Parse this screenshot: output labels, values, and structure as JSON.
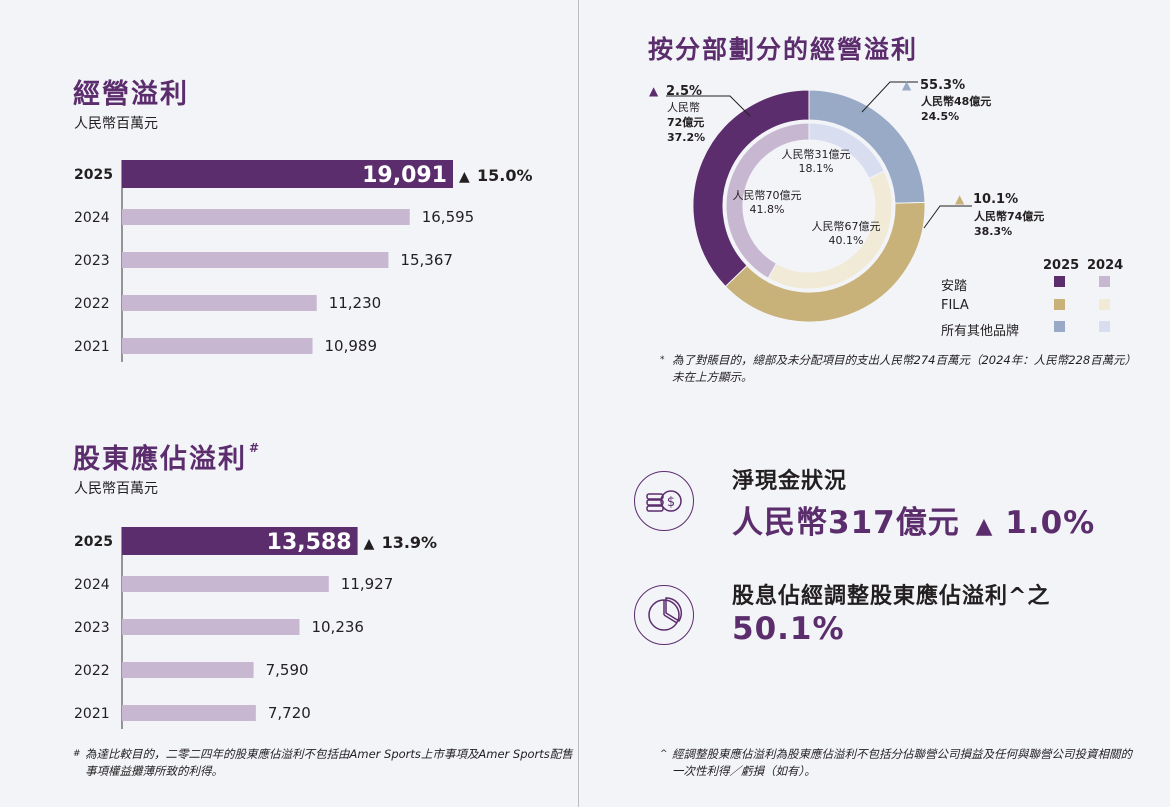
{
  "colors": {
    "accent": "#5c2d6d",
    "bar_current": "#5c2d6d",
    "bar_prior": "#c8b7d1",
    "anta_2025": "#5c2d6d",
    "anta_2024": "#c8b7d1",
    "fila_2025": "#c8b27a",
    "fila_2024": "#f1ead7",
    "other_2025": "#99aac6",
    "other_2024": "#d8def0"
  },
  "operating_profit": {
    "title": "經營溢利",
    "unit": "人民幣百萬元"
  },
  "shareholder_profit": {
    "title": "股東應佔溢利",
    "title_mark": "#",
    "unit": "人民幣百萬元",
    "footnote_mark": "#",
    "footnote": "為達比較目的，二零二四年的股東應佔溢利不包括由Amer Sports上市事項及Amer Sports配售事項權益攤薄所致的利得。"
  },
  "segment": {
    "title": "按分部劃分的經營溢利",
    "footnote_mark": "*",
    "footnote": "為了對賬目的，總部及未分配項目的支出人民幣274百萬元（2024年：人民幣228百萬元）未在上方顯示。",
    "callouts": [
      {
        "change": "2.5%",
        "line1": "人民幣",
        "line2": "72億元",
        "line3": "37.2%"
      },
      {
        "change": "55.3%",
        "line1": "人民幣48億元",
        "line2": "24.5%"
      },
      {
        "change": "10.1%",
        "line1": "人民幣74億元",
        "line2": "38.3%"
      }
    ],
    "inner_labels": [
      {
        "amount": "人民幣31億元",
        "pct": "18.1%"
      },
      {
        "amount": "人民幣70億元",
        "pct": "41.8%"
      },
      {
        "amount": "人民幣67億元",
        "pct": "40.1%"
      }
    ],
    "legend": {
      "year_current": "2025",
      "year_prior": "2024",
      "items": [
        "安踏",
        "FILA",
        "所有其他品牌"
      ]
    }
  },
  "net_cash": {
    "label": "淨現金狀況",
    "value": "人民幣317億元",
    "change": "1.0%"
  },
  "payout": {
    "label": "股息佔經調整股東應佔溢利^之",
    "value": "50.1%",
    "footnote_mark": "^",
    "footnote": "經調整股東應佔溢利為股東應佔溢利不包括分佔聯營公司損益及任何與聯營公司投資相關的一次性利得／虧損（如有）。"
  },
  "chart_data": [
    {
      "type": "bar",
      "orientation": "horizontal",
      "title": "經營溢利",
      "unit": "人民幣百萬元",
      "categories": [
        "2025",
        "2024",
        "2023",
        "2022",
        "2021"
      ],
      "values": [
        19091,
        16595,
        15367,
        11230,
        10989
      ],
      "labels": [
        "19,091",
        "16,595",
        "15,367",
        "11,230",
        "10,989"
      ],
      "change": "15.0%",
      "xlim": [
        0,
        20000
      ]
    },
    {
      "type": "bar",
      "orientation": "horizontal",
      "title": "股東應佔溢利",
      "unit": "人民幣百萬元",
      "categories": [
        "2025",
        "2024",
        "2023",
        "2022",
        "2021"
      ],
      "values": [
        13588,
        11927,
        10236,
        7590,
        7720
      ],
      "labels": [
        "13,588",
        "11,927",
        "10,236",
        "7,590",
        "7,720"
      ],
      "change": "13.9%",
      "xlim": [
        0,
        20000
      ]
    },
    {
      "type": "pie",
      "variant": "nested-donut",
      "title": "按分部劃分的經營溢利",
      "categories": [
        "安踏",
        "FILA",
        "所有其他品牌"
      ],
      "series": [
        {
          "name": "2025",
          "values": [
            37.2,
            38.3,
            24.5
          ]
        },
        {
          "name": "2024",
          "values": [
            41.8,
            40.1,
            18.1
          ]
        }
      ]
    }
  ]
}
